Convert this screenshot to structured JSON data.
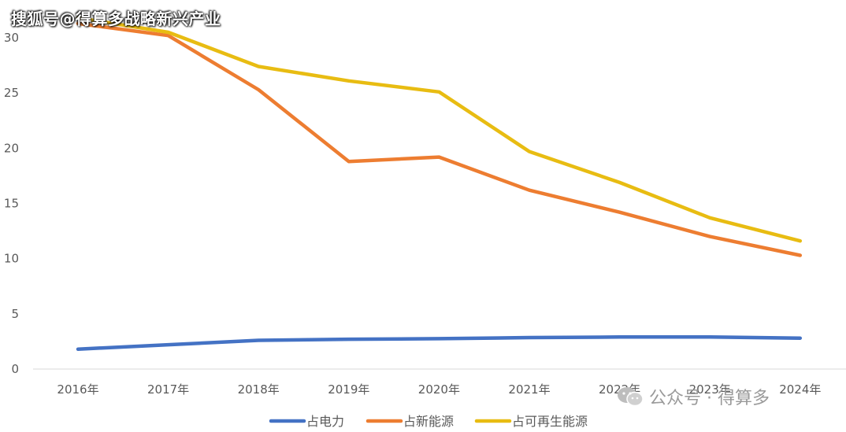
{
  "watermark_top": "搜狐号@得算多战略新兴产业",
  "watermark_bottom": "公众号 · 得算多",
  "chart_data": {
    "type": "line",
    "categories": [
      "2016年",
      "2017年",
      "2018年",
      "2019年",
      "2020年",
      "2021年",
      "2022年",
      "2023年",
      "2024年"
    ],
    "yticks": [
      "0",
      "5",
      "10",
      "15",
      "20",
      "25",
      "30"
    ],
    "ylim": [
      0,
      31.5
    ],
    "grid": false,
    "legend_position": "bottom",
    "series": [
      {
        "name": "占电力",
        "color": "#4472C4",
        "values": [
          1.8,
          2.2,
          2.6,
          2.7,
          2.75,
          2.85,
          2.9,
          2.9,
          2.8
        ]
      },
      {
        "name": "占新能源",
        "color": "#ED7D31",
        "values": [
          31.3,
          30.2,
          25.3,
          18.8,
          19.2,
          16.2,
          14.2,
          12.0,
          10.3
        ]
      },
      {
        "name": "占可再生能源",
        "color": "#E8BC12",
        "values": [
          31.8,
          30.5,
          27.4,
          26.1,
          25.1,
          19.7,
          16.9,
          13.7,
          11.6
        ]
      }
    ]
  }
}
